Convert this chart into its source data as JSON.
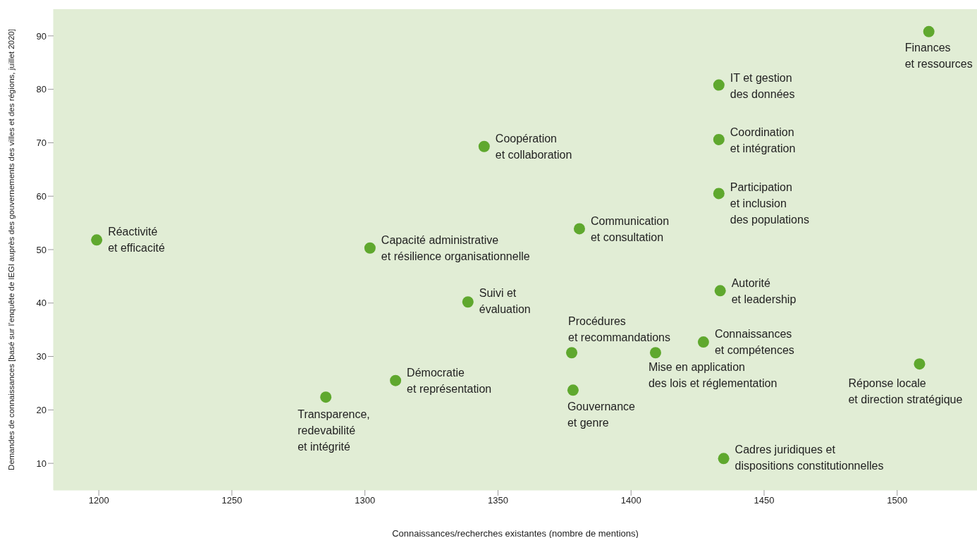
{
  "chart_data": {
    "type": "scatter",
    "xlabel": "Connaissances/recherches existantes (nombre de mentions)",
    "ylabel": "Demandes de connaissances [basé sur l’enquête de lEGI auprès des gouvernements des villes et des régions, juillet 2020]",
    "x": [
      1511.9,
      1433,
      1433,
      1433,
      1433.5,
      1427.2,
      1508.4,
      1434.8,
      1409.2,
      1377.7,
      1378.2,
      1380.6,
      1344.8,
      1301.9,
      1338.7,
      1311.5,
      1285.3,
      1199.2
    ],
    "values": [
      90.8,
      80.8,
      70.6,
      60.5,
      42.3,
      32.7,
      28.6,
      10.9,
      30.7,
      30.7,
      23.7,
      53.9,
      69.3,
      50.3,
      40.2,
      25.5,
      22.4,
      51.8
    ],
    "color": "#5fa82e",
    "marker": "circle",
    "legend": false,
    "xlim": [
      1183,
      1530
    ],
    "xticks": [
      1200,
      1250,
      1300,
      1350,
      1400,
      1450,
      1500
    ],
    "ylim": [
      5,
      95
    ],
    "yticks": [
      10,
      20,
      30,
      40,
      50,
      60,
      70,
      80,
      90
    ],
    "annotations": [
      {
        "text": "Finances\net ressources",
        "x": 1511.9,
        "y": 90.8
      },
      {
        "text": "IT et gestion\ndes données",
        "x": 1433,
        "y": 80.8
      },
      {
        "text": "Coordination\net intégration",
        "x": 1433,
        "y": 70.6
      },
      {
        "text": "Participation\net inclusion\ndes populations",
        "x": 1433,
        "y": 60.5
      },
      {
        "text": "Autorité\net leadership",
        "x": 1433.5,
        "y": 42.3
      },
      {
        "text": "Connaissances\net compétences",
        "x": 1427.2,
        "y": 32.7
      },
      {
        "text": "Réponse locale\net direction stratégique",
        "x": 1508.4,
        "y": 28.6
      },
      {
        "text": "Cadres juridiques et\ndispositions constitutionnelles",
        "x": 1434.8,
        "y": 10.9
      },
      {
        "text": "Mise en application\ndes lois et réglementation",
        "x": 1409.2,
        "y": 30.7
      },
      {
        "text": "Procédures\net recommandations",
        "x": 1377.7,
        "y": 30.7
      },
      {
        "text": "Gouvernance\net genre",
        "x": 1378.2,
        "y": 23.7
      },
      {
        "text": "Communication\net consultation",
        "x": 1380.6,
        "y": 53.9
      },
      {
        "text": "Coopération\net collaboration",
        "x": 1344.8,
        "y": 69.3
      },
      {
        "text": "Capacité administrative\net résilience organisationnelle",
        "x": 1301.9,
        "y": 50.3
      },
      {
        "text": "Suivi et\névaluation",
        "x": 1338.7,
        "y": 40.2
      },
      {
        "text": "Démocratie\net représentation",
        "x": 1311.5,
        "y": 25.5
      },
      {
        "text": "Transparence,\nredevabilité\net intégrité",
        "x": 1285.3,
        "y": 22.4
      },
      {
        "text": "Réactivité\net efficacité",
        "x": 1199.2,
        "y": 51.8
      }
    ]
  }
}
